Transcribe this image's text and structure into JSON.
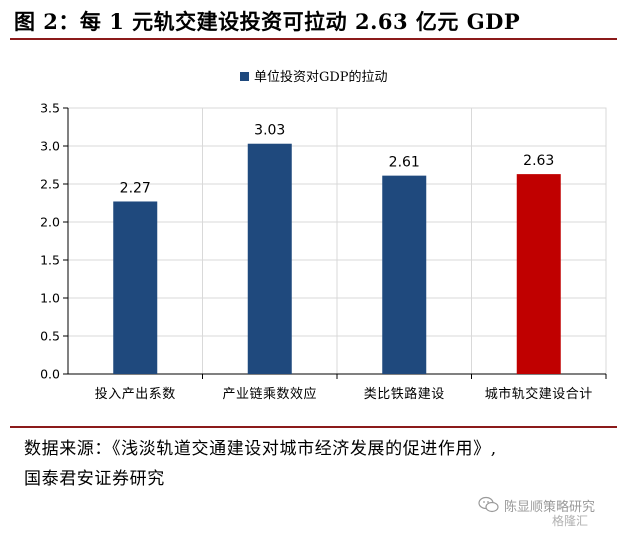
{
  "header": {
    "title": "图 2：每 1 元轨交建设投资可拉动 2.63 亿元 GDP"
  },
  "chart_data": {
    "type": "bar",
    "categories": [
      "投入产出系数",
      "产业链乘数效应",
      "类比铁路建设",
      "城市轨交建设合计"
    ],
    "series": [
      {
        "name": "单位投资对GDP的拉动",
        "values": [
          2.27,
          3.03,
          2.61,
          2.63
        ]
      }
    ],
    "data_labels": [
      "2.27",
      "3.03",
      "2.61",
      "2.63"
    ],
    "ylim": [
      0,
      3.5
    ],
    "yticks": [
      "0.0",
      "0.5",
      "1.0",
      "1.5",
      "2.0",
      "2.5",
      "3.0",
      "3.5"
    ],
    "grid": true,
    "legend_position": "top-center",
    "colors": {
      "bar": "#1f497d",
      "highlight": "#c00000",
      "grid": "#d9d9d9"
    },
    "highlight_index": 3
  },
  "source": {
    "line1": "数据来源：《浅淡轨道交通建设对城市经济发展的促进作用》,",
    "line2": "国泰君安证券研究"
  },
  "watermark": {
    "icon": "wechat-icon",
    "text": "陈显顺策略研究",
    "logo": "格隆汇"
  }
}
